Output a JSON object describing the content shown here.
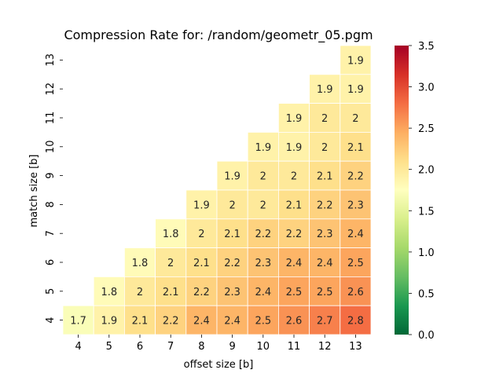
{
  "chart_data": {
    "type": "heatmap",
    "title": "Compression Rate for: /random/geometr_05.pgm",
    "xlabel": "offset size [b]",
    "ylabel": "match size [b]",
    "x": [
      4,
      5,
      6,
      7,
      8,
      9,
      10,
      11,
      12,
      13
    ],
    "y": [
      13,
      12,
      11,
      10,
      9,
      8,
      7,
      6,
      5,
      4
    ],
    "values": [
      [
        null,
        null,
        null,
        null,
        null,
        null,
        null,
        null,
        null,
        1.9
      ],
      [
        null,
        null,
        null,
        null,
        null,
        null,
        null,
        null,
        1.9,
        1.9
      ],
      [
        null,
        null,
        null,
        null,
        null,
        null,
        null,
        1.9,
        2,
        2
      ],
      [
        null,
        null,
        null,
        null,
        null,
        null,
        1.9,
        1.9,
        2,
        2.1
      ],
      [
        null,
        null,
        null,
        null,
        null,
        1.9,
        2,
        2,
        2.1,
        2.2
      ],
      [
        null,
        null,
        null,
        null,
        1.9,
        2,
        2,
        2.1,
        2.2,
        2.3
      ],
      [
        null,
        null,
        null,
        1.8,
        2,
        2.1,
        2.2,
        2.2,
        2.3,
        2.4
      ],
      [
        null,
        null,
        1.8,
        2,
        2.1,
        2.2,
        2.3,
        2.4,
        2.4,
        2.5
      ],
      [
        null,
        1.8,
        2,
        2.1,
        2.2,
        2.3,
        2.4,
        2.5,
        2.5,
        2.6
      ],
      [
        1.7,
        1.9,
        2.1,
        2.2,
        2.4,
        2.4,
        2.5,
        2.6,
        2.7,
        2.8
      ]
    ],
    "colorbar": {
      "vmin": 0.0,
      "vmax": 3.5,
      "ticks": [
        "0.0",
        "0.5",
        "1.0",
        "1.5",
        "2.0",
        "2.5",
        "3.0",
        "3.5"
      ],
      "colormap": "RdYlGn_r"
    },
    "grid": false,
    "cell_border_color": "#ffffff"
  }
}
